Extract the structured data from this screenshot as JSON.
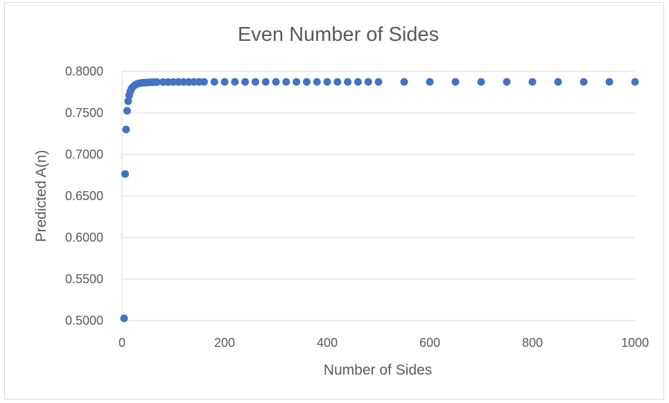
{
  "chart_data": {
    "type": "scatter",
    "title": "Even Number of Sides",
    "xlabel": "Number of Sides",
    "ylabel": "Predicted A(n)",
    "xlim": [
      0,
      1000
    ],
    "ylim": [
      0.5,
      0.8
    ],
    "xticks": [
      "0",
      "200",
      "400",
      "600",
      "800",
      "1000"
    ],
    "yticks": [
      "0.5000",
      "0.5500",
      "0.6000",
      "0.6500",
      "0.7000",
      "0.7500",
      "0.8000"
    ],
    "grid": true,
    "legend": "none",
    "marker_color": "#4472C4",
    "series": [
      {
        "x": [
          4,
          6,
          8,
          10,
          12,
          14,
          16,
          18,
          20,
          24,
          28,
          32,
          36,
          40,
          44,
          48,
          52,
          56,
          60,
          64,
          68,
          80,
          90,
          100,
          110,
          120,
          130,
          140,
          150,
          160,
          180,
          200,
          220,
          240,
          260,
          280,
          300,
          320,
          340,
          360,
          380,
          400,
          420,
          440,
          460,
          480,
          500,
          550,
          600,
          650,
          700,
          750,
          800,
          850,
          900,
          950,
          1000
        ],
        "y": [
          0.5027,
          0.6765,
          0.73,
          0.7525,
          0.764,
          0.771,
          0.7755,
          0.7785,
          0.7805,
          0.783,
          0.7845,
          0.7853,
          0.7858,
          0.7862,
          0.7864,
          0.7866,
          0.7867,
          0.7868,
          0.7869,
          0.787,
          0.787,
          0.7871,
          0.7871,
          0.7872,
          0.7872,
          0.7872,
          0.7872,
          0.7872,
          0.7873,
          0.7873,
          0.7873,
          0.7873,
          0.7873,
          0.7873,
          0.7873,
          0.7873,
          0.7873,
          0.7873,
          0.7873,
          0.7873,
          0.7873,
          0.7873,
          0.7873,
          0.7873,
          0.7873,
          0.7873,
          0.7873,
          0.7873,
          0.7873,
          0.7873,
          0.7873,
          0.7873,
          0.7873,
          0.7873,
          0.7873,
          0.7873,
          0.7873
        ]
      }
    ]
  }
}
